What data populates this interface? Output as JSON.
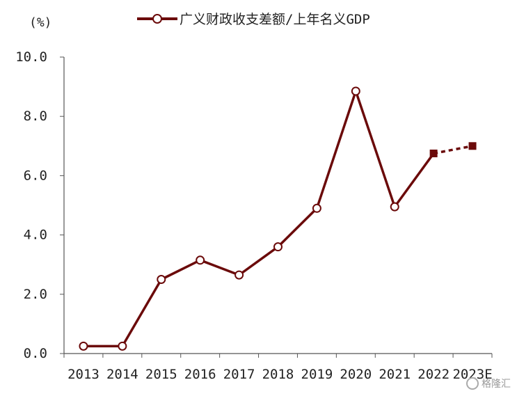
{
  "chart_data": {
    "type": "line",
    "title": "",
    "ylabel": "(%)",
    "xlabel": "",
    "ylim": [
      0,
      10
    ],
    "yticks": [
      "0.0",
      "2.0",
      "4.0",
      "6.0",
      "8.0",
      "10.0"
    ],
    "categories": [
      "2013",
      "2014",
      "2015",
      "2016",
      "2017",
      "2018",
      "2019",
      "2020",
      "2021",
      "2022",
      "2023E"
    ],
    "series": [
      {
        "name": "广义财政收支差额/上年名义GDP",
        "color": "#6b0a0a",
        "values": [
          0.25,
          0.25,
          2.5,
          3.15,
          2.65,
          3.6,
          4.9,
          8.85,
          4.95,
          6.75,
          7.0
        ],
        "forecast_from_index": 9
      }
    ],
    "legend_position": "top-center",
    "grid": false,
    "watermark": "格隆汇"
  }
}
